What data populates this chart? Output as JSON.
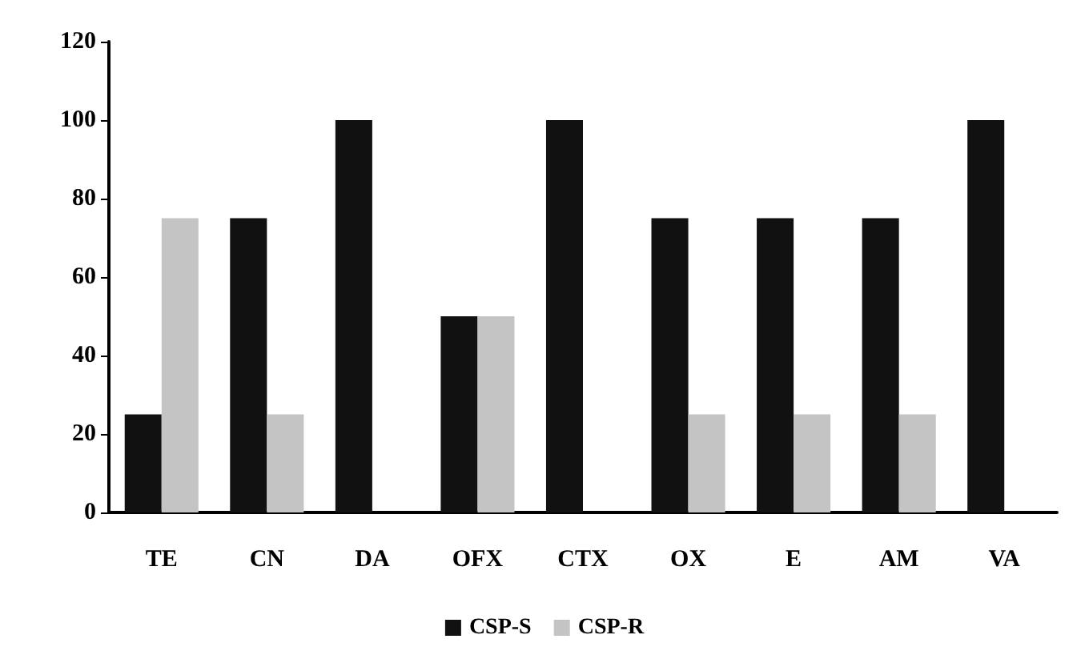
{
  "chart_data": {
    "type": "bar",
    "categories": [
      "TE",
      "CN",
      "DA",
      "OFX",
      "CTX",
      "OX",
      "E",
      "AM",
      "VA"
    ],
    "series": [
      {
        "name": "CSP-S",
        "color": "#111111",
        "values": [
          25,
          75,
          100,
          50,
          100,
          75,
          75,
          75,
          100
        ]
      },
      {
        "name": "CSP-R",
        "color": "#c4c4c4",
        "values": [
          75,
          25,
          0,
          50,
          0,
          25,
          25,
          25,
          0
        ]
      }
    ],
    "ylim": [
      0,
      120
    ],
    "yticks": [
      0,
      20,
      40,
      60,
      80,
      100,
      120
    ],
    "grid": false,
    "legend": "bottom"
  }
}
